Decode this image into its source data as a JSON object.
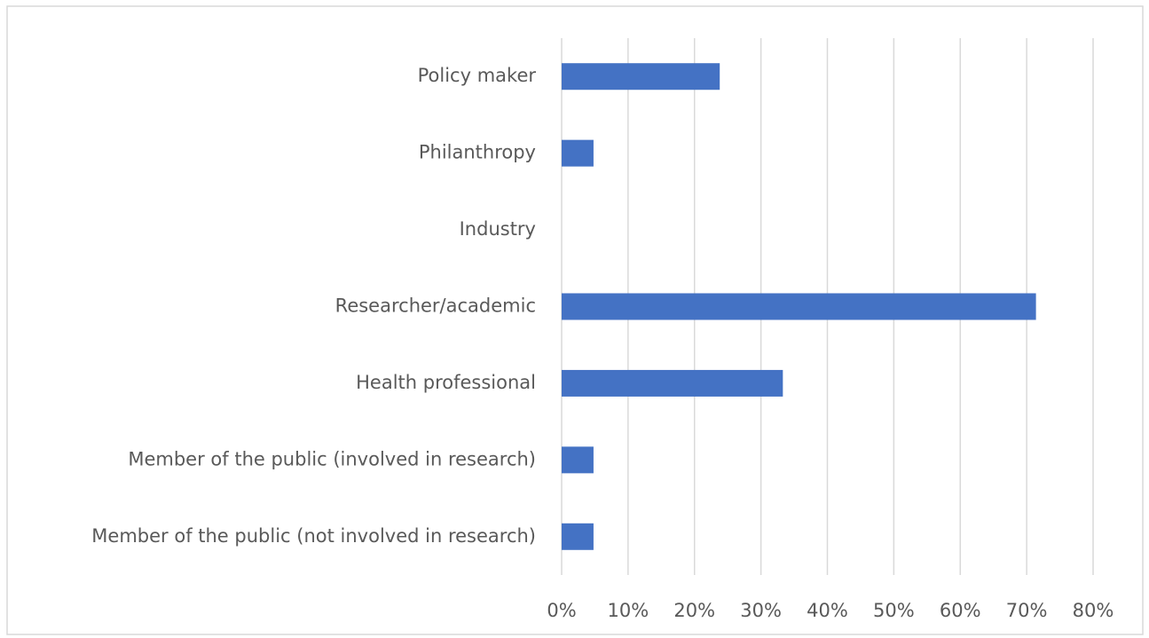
{
  "chart_data": {
    "type": "hbar",
    "categories": [
      "Policy maker",
      "Philanthropy",
      "Industry",
      "Researcher/academic",
      "Health professional",
      "Member of the public (involved in research)",
      "Member of the public (not involved in research)"
    ],
    "values": [
      23.8,
      4.8,
      0,
      71.4,
      33.3,
      4.8,
      4.8
    ],
    "color": "#4472c4",
    "xlim": [
      0,
      80
    ],
    "xticks": [
      {
        "value": 0,
        "label": "0%"
      },
      {
        "value": 10,
        "label": "10%"
      },
      {
        "value": 20,
        "label": "20%"
      },
      {
        "value": 30,
        "label": "30%"
      },
      {
        "value": 40,
        "label": "40%"
      },
      {
        "value": 50,
        "label": "50%"
      },
      {
        "value": 60,
        "label": "60%"
      },
      {
        "value": 70,
        "label": "70%"
      },
      {
        "value": 80,
        "label": "80%"
      }
    ],
    "grid": true
  }
}
